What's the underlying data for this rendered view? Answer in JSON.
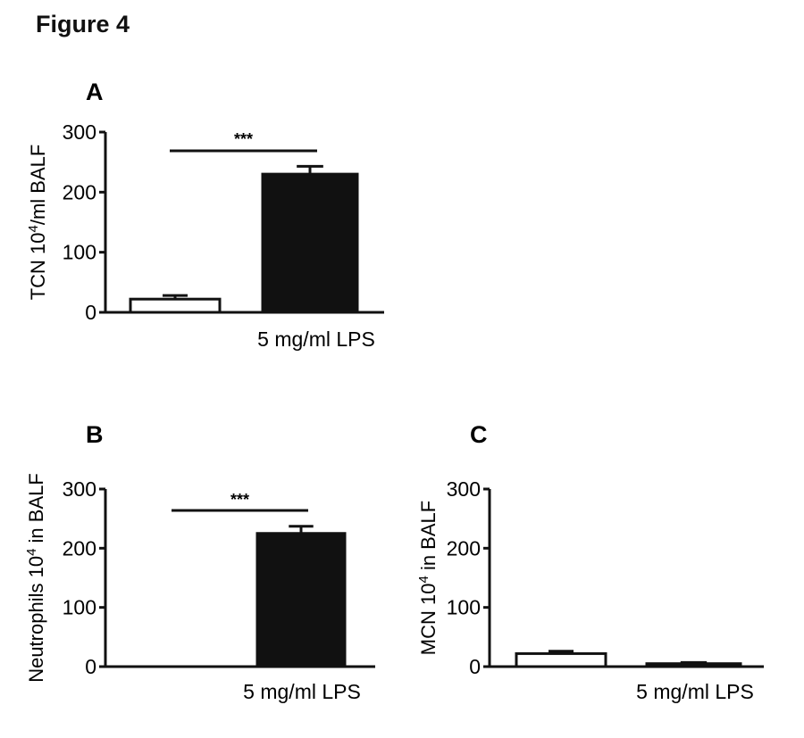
{
  "figure_title": "Figure 4",
  "colors": {
    "treated": "#111111",
    "control": "#ffffff",
    "ink": "#111111"
  },
  "chart_data": [
    {
      "type": "bar",
      "panel": "A",
      "ylabel": "TCN 10",
      "ylabel_sup": "4",
      "ylabel_suffix": "/ml BALF",
      "ylim": [
        0,
        300
      ],
      "yticks": [
        "0",
        "100",
        "200",
        "300"
      ],
      "categories": [
        "",
        "5 mg/ml LPS"
      ],
      "values": [
        22,
        230
      ],
      "errors": [
        6,
        13
      ],
      "significance": "***"
    },
    {
      "type": "bar",
      "panel": "B",
      "ylabel": "Neutrophils 10",
      "ylabel_sup": "4",
      "ylabel_suffix": " in BALF",
      "ylim": [
        0,
        300
      ],
      "yticks": [
        "0",
        "100",
        "200",
        "300"
      ],
      "categories": [
        "",
        "5 mg/ml LPS"
      ],
      "values": [
        0,
        225
      ],
      "errors": [
        0,
        12
      ],
      "significance": "***"
    },
    {
      "type": "bar",
      "panel": "C",
      "ylabel": "MCN 10",
      "ylabel_sup": "4",
      "ylabel_suffix": " in BALF",
      "ylim": [
        0,
        300
      ],
      "yticks": [
        "0",
        "100",
        "200",
        "300"
      ],
      "categories": [
        "",
        "5 mg/ml LPS"
      ],
      "values": [
        22,
        5
      ],
      "errors": [
        4,
        2
      ],
      "significance": ""
    }
  ]
}
